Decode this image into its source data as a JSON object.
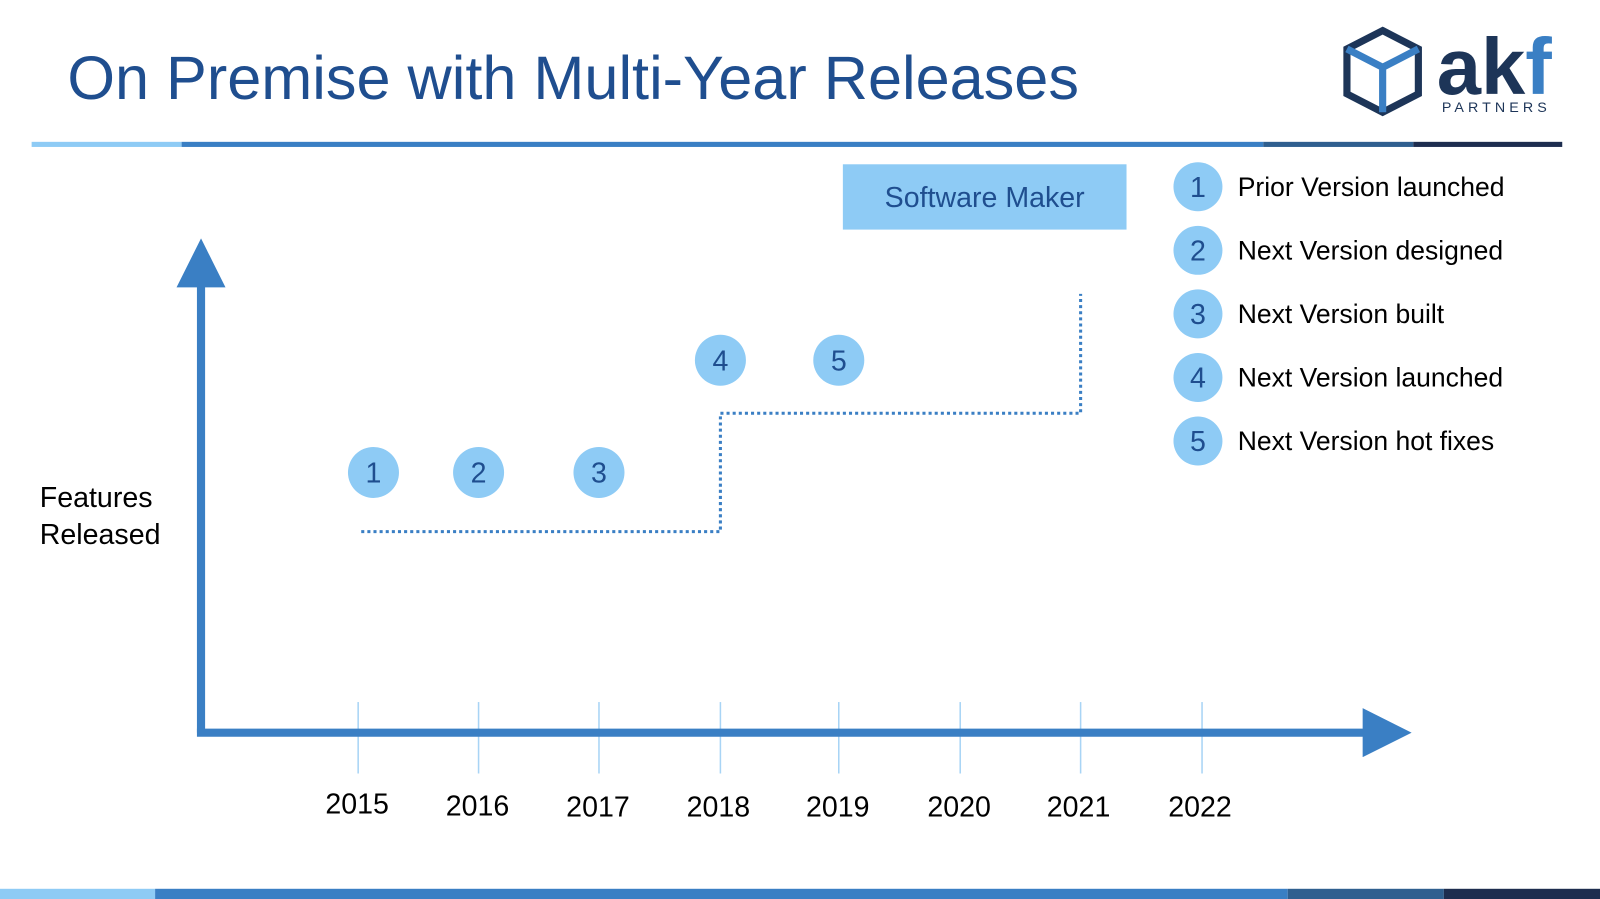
{
  "header": {
    "title": "On Premise with Multi-Year Releases",
    "logo": {
      "word": "ak",
      "word_accent": "f",
      "subtitle": "PARTNERS"
    }
  },
  "diagram": {
    "box_label": "Software Maker",
    "y_axis_label": [
      "Features",
      "Released"
    ],
    "years": [
      "2015",
      "2016",
      "2017",
      "2018",
      "2019",
      "2020",
      "2021",
      "2022"
    ],
    "markers": [
      "1",
      "2",
      "3",
      "4",
      "5"
    ]
  },
  "legend": [
    {
      "number": "1",
      "label": "Prior Version launched"
    },
    {
      "number": "2",
      "label": "Next Version designed"
    },
    {
      "number": "3",
      "label": "Next Version built"
    },
    {
      "number": "4",
      "label": "Next Version launched"
    },
    {
      "number": "5",
      "label": "Next Version hot fixes"
    }
  ]
}
